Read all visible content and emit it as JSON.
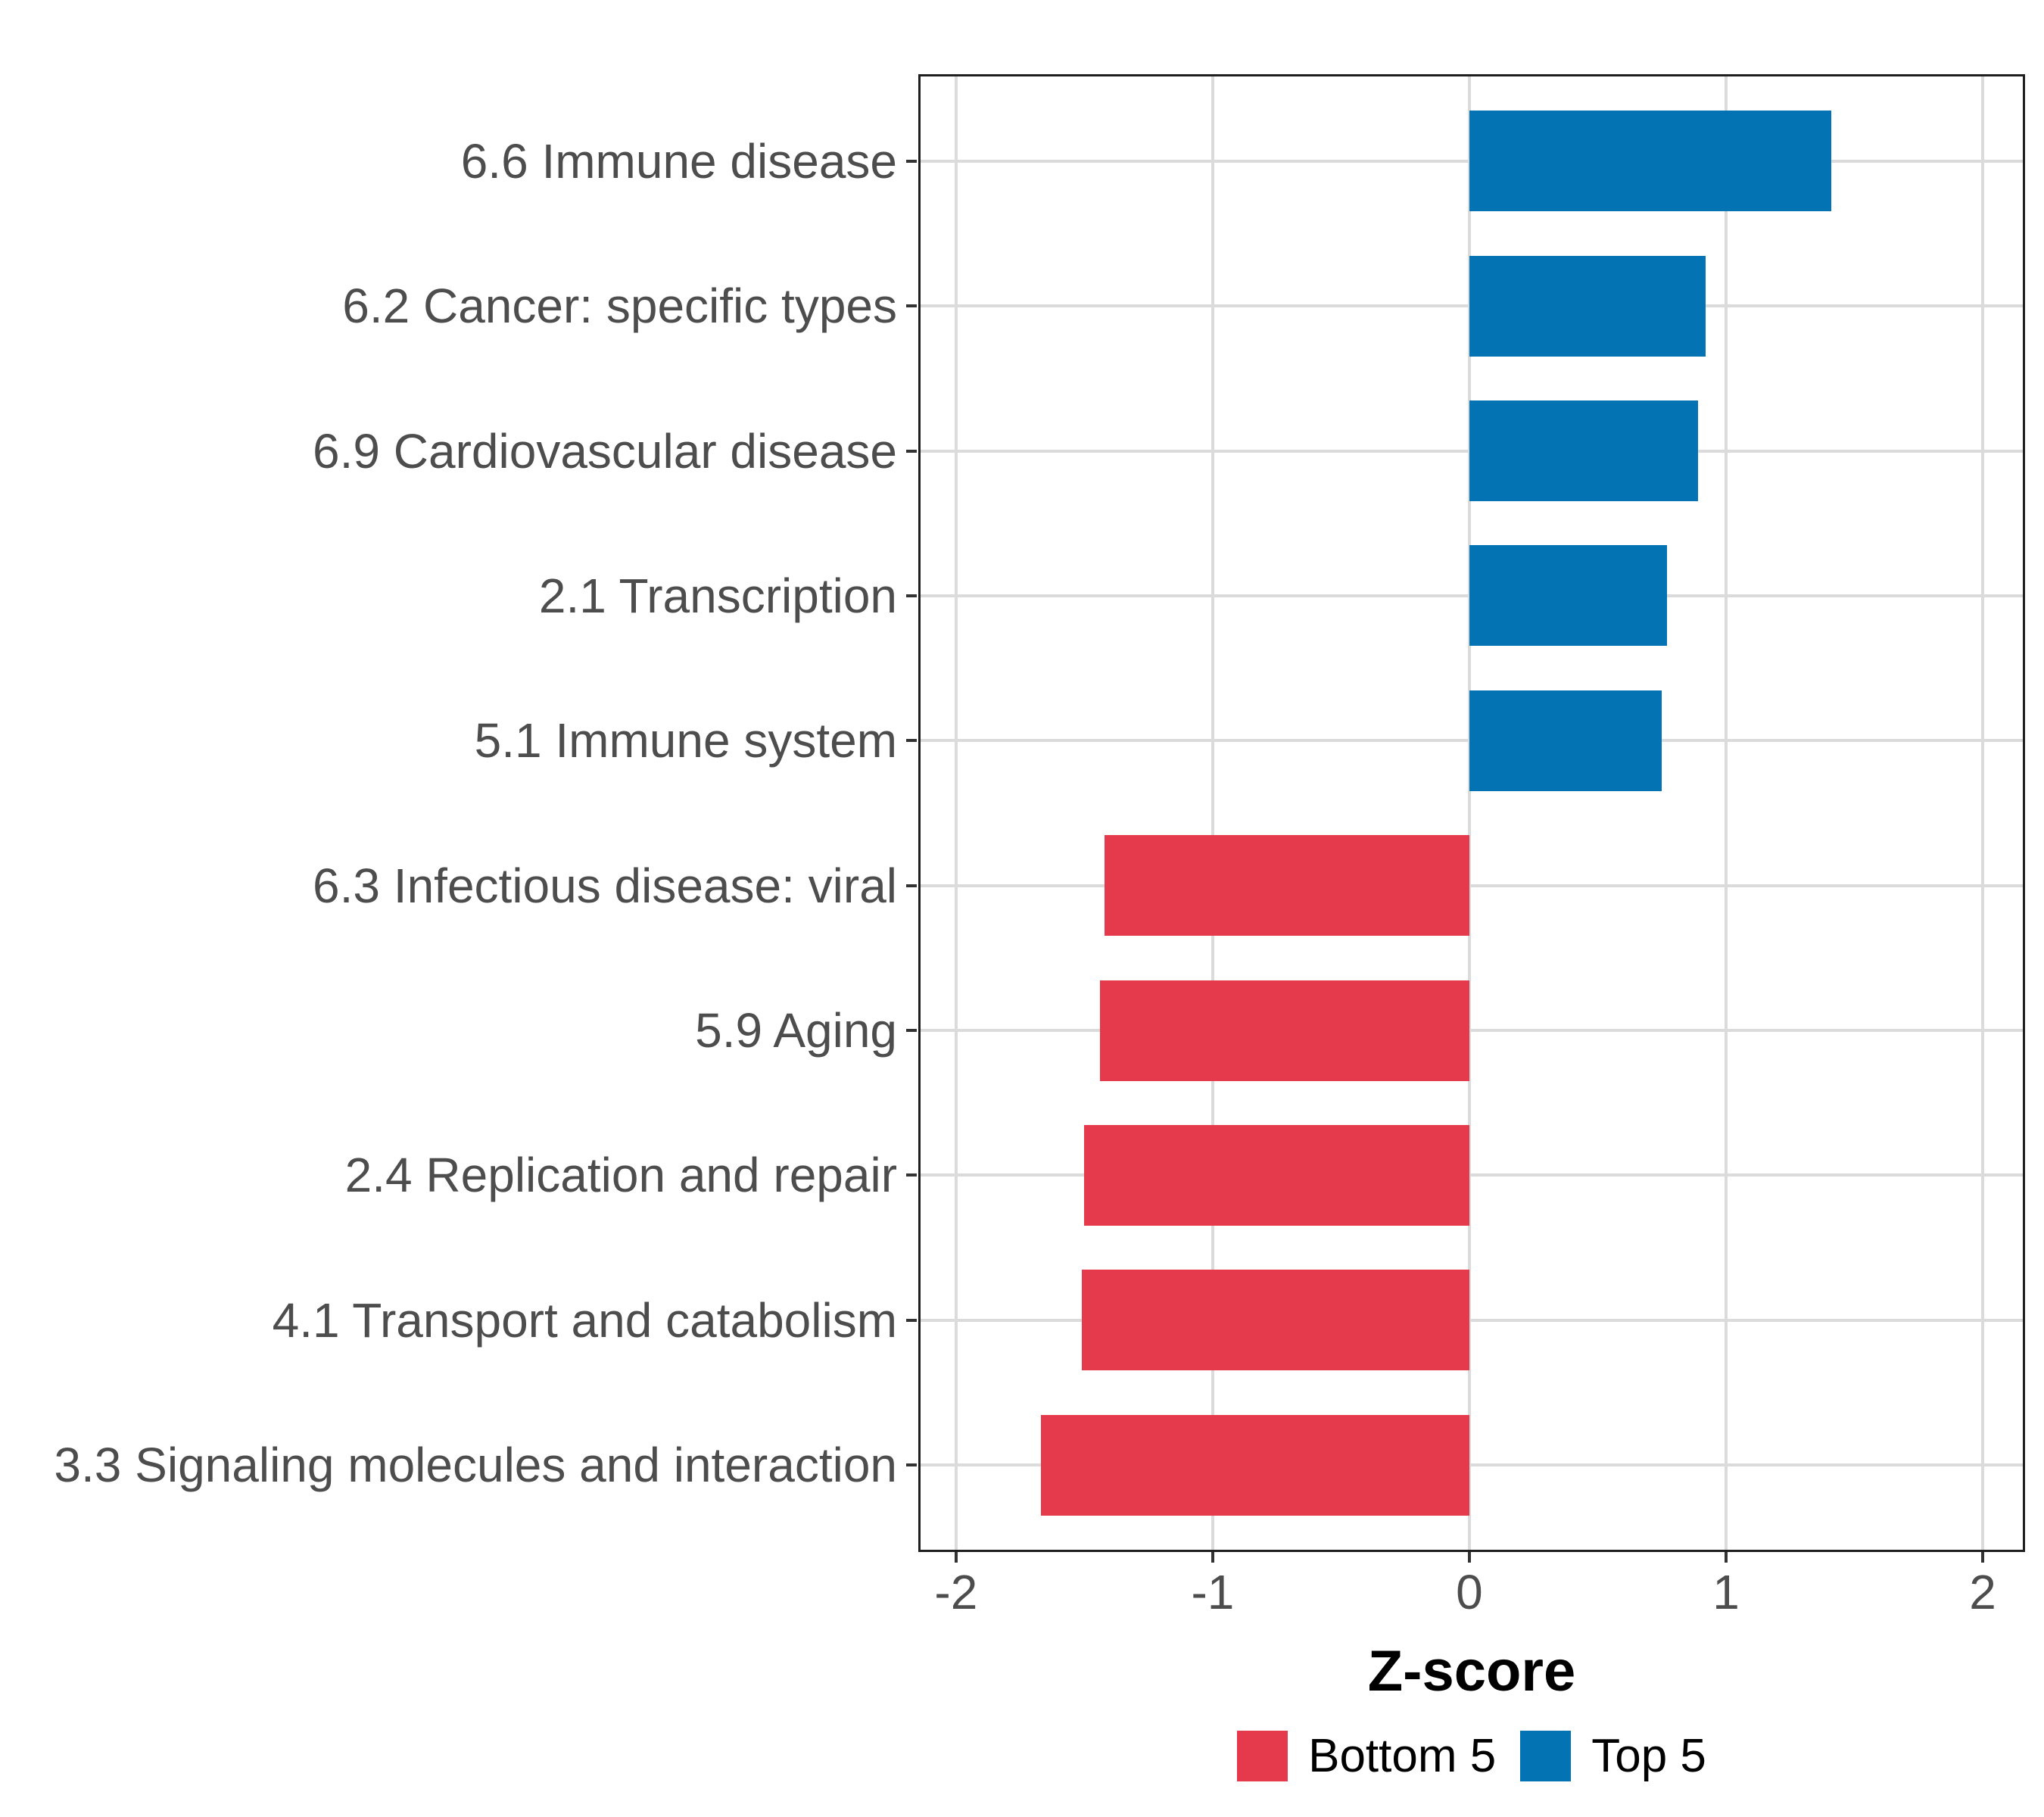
{
  "chart_data": {
    "type": "bar",
    "orientation": "horizontal",
    "title": "",
    "xlabel": "Z-score",
    "ylabel": "",
    "x_ticks": [
      -2,
      -1,
      0,
      1,
      2
    ],
    "xlim": [
      -2.15,
      2.17
    ],
    "grid": "major-only",
    "legend_position": "bottom",
    "categories": [
      "6.6 Immune disease",
      "6.2 Cancer: specific types",
      "6.9 Cardiovascular disease",
      "2.1 Transcription",
      "5.1 Immune system",
      "6.3 Infectious disease: viral",
      "5.9 Aging",
      "2.4 Replication and repair",
      "4.1 Transport and catabolism",
      "3.3 Signaling molecules and interaction"
    ],
    "points": [
      {
        "label": "6.6 Immune disease",
        "value": 1.41,
        "group": "Top 5"
      },
      {
        "label": "6.2 Cancer: specific types",
        "value": 0.92,
        "group": "Top 5"
      },
      {
        "label": "6.9 Cardiovascular disease",
        "value": 0.89,
        "group": "Top 5"
      },
      {
        "label": "2.1 Transcription",
        "value": 0.77,
        "group": "Top 5"
      },
      {
        "label": "5.1 Immune system",
        "value": 0.75,
        "group": "Top 5"
      },
      {
        "label": "6.3 Infectious disease: viral",
        "value": -1.42,
        "group": "Bottom 5"
      },
      {
        "label": "5.9 Aging",
        "value": -1.44,
        "group": "Bottom 5"
      },
      {
        "label": "2.4 Replication and repair",
        "value": -1.5,
        "group": "Bottom 5"
      },
      {
        "label": "4.1 Transport and catabolism",
        "value": -1.51,
        "group": "Bottom 5"
      },
      {
        "label": "3.3 Signaling molecules and interaction",
        "value": -1.67,
        "group": "Bottom 5"
      }
    ],
    "legend": [
      {
        "label": "Bottom 5",
        "color": "#E43A4C"
      },
      {
        "label": "Top 5",
        "color": "#0473B4"
      }
    ],
    "colors": {
      "Bottom 5": "#E43A4C",
      "Top 5": "#0473B4"
    }
  }
}
